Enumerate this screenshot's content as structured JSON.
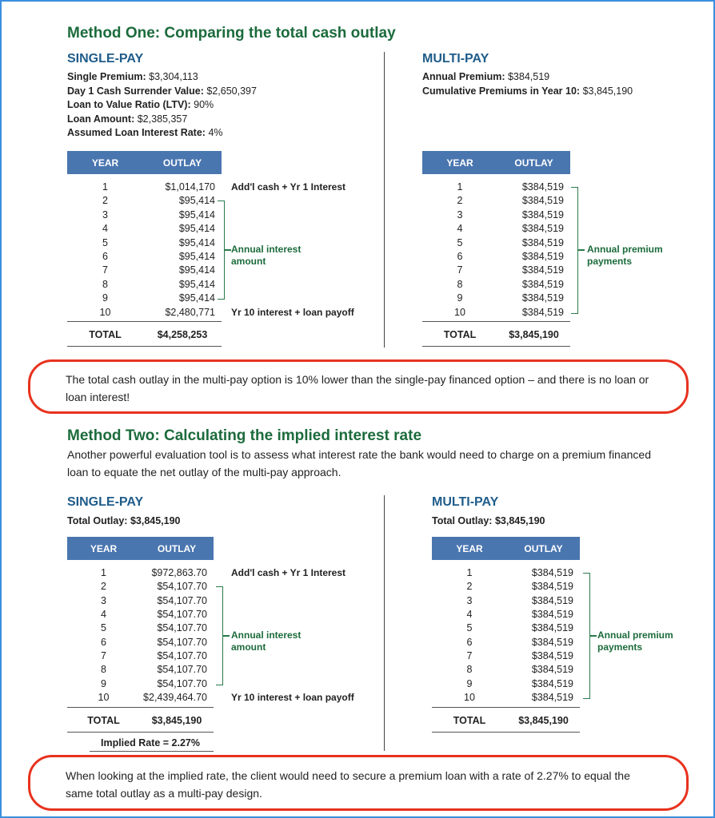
{
  "method_one": {
    "title": "Method One: Comparing the total cash outlay",
    "single_pay": {
      "heading": "SINGLE-PAY",
      "facts": [
        {
          "label": "Single Premium:",
          "value": "$3,304,113"
        },
        {
          "label": "Day 1 Cash Surrender Value:",
          "value": "$2,650,397"
        },
        {
          "label": "Loan to Value Ratio (LTV):",
          "value": "90%"
        },
        {
          "label": "Loan Amount:",
          "value": "$2,385,357"
        },
        {
          "label": "Assumed Loan Interest Rate:",
          "value": "4%"
        }
      ],
      "table": {
        "headers": [
          "YEAR",
          "OUTLAY"
        ],
        "rows": [
          [
            1,
            "$1,014,170"
          ],
          [
            2,
            "$95,414"
          ],
          [
            3,
            "$95,414"
          ],
          [
            4,
            "$95,414"
          ],
          [
            5,
            "$95,414"
          ],
          [
            6,
            "$95,414"
          ],
          [
            7,
            "$95,414"
          ],
          [
            8,
            "$95,414"
          ],
          [
            9,
            "$95,414"
          ],
          [
            10,
            "$2,480,771"
          ]
        ],
        "total": [
          "TOTAL",
          "$4,258,253"
        ]
      },
      "notes": {
        "first": "Add'l cash + Yr 1 Interest",
        "bracket": "Annual interest amount",
        "last": "Yr 10 interest + loan payoff"
      }
    },
    "multi_pay": {
      "heading": "MULTI-PAY",
      "facts": [
        {
          "label": "Annual Premium:",
          "value": "$384,519"
        },
        {
          "label": "Cumulative Premiums in Year 10:",
          "value": "$3,845,190"
        }
      ],
      "table": {
        "headers": [
          "YEAR",
          "OUTLAY"
        ],
        "rows": [
          [
            1,
            "$384,519"
          ],
          [
            2,
            "$384,519"
          ],
          [
            3,
            "$384,519"
          ],
          [
            4,
            "$384,519"
          ],
          [
            5,
            "$384,519"
          ],
          [
            6,
            "$384,519"
          ],
          [
            7,
            "$384,519"
          ],
          [
            8,
            "$384,519"
          ],
          [
            9,
            "$384,519"
          ],
          [
            10,
            "$384,519"
          ]
        ],
        "total": [
          "TOTAL",
          "$3,845,190"
        ]
      },
      "notes": {
        "bracket": "Annual premium payments"
      }
    }
  },
  "callout_one": "The total cash outlay in the multi-pay option is 10% lower than the single-pay financed option – and there is no loan or loan interest!",
  "method_two": {
    "title": "Method Two: Calculating the implied interest rate",
    "intro": "Another powerful evaluation tool is to assess what interest rate the bank would need to charge on a premium financed loan to equate the net outlay of the multi-pay approach.",
    "single_pay": {
      "heading": "SINGLE-PAY",
      "facts": [
        {
          "label": "Total Outlay:",
          "value": "$3,845,190"
        }
      ],
      "table": {
        "headers": [
          "YEAR",
          "OUTLAY"
        ],
        "rows": [
          [
            1,
            "$972,863.70"
          ],
          [
            2,
            "$54,107.70"
          ],
          [
            3,
            "$54,107.70"
          ],
          [
            4,
            "$54,107.70"
          ],
          [
            5,
            "$54,107.70"
          ],
          [
            6,
            "$54,107.70"
          ],
          [
            7,
            "$54,107.70"
          ],
          [
            8,
            "$54,107.70"
          ],
          [
            9,
            "$54,107.70"
          ],
          [
            10,
            "$2,439,464.70"
          ]
        ],
        "total": [
          "TOTAL",
          "$3,845,190"
        ]
      },
      "notes": {
        "first": "Add'l cash + Yr 1 Interest",
        "bracket": "Annual interest amount",
        "last": "Yr 10 interest + loan payoff"
      },
      "implied_rate": "Implied Rate = 2.27%"
    },
    "multi_pay": {
      "heading": "MULTI-PAY",
      "facts": [
        {
          "label": "Total Outlay:",
          "value": "$3,845,190"
        }
      ],
      "table": {
        "headers": [
          "YEAR",
          "OUTLAY"
        ],
        "rows": [
          [
            1,
            "$384,519"
          ],
          [
            2,
            "$384,519"
          ],
          [
            3,
            "$384,519"
          ],
          [
            4,
            "$384,519"
          ],
          [
            5,
            "$384,519"
          ],
          [
            6,
            "$384,519"
          ],
          [
            7,
            "$384,519"
          ],
          [
            8,
            "$384,519"
          ],
          [
            9,
            "$384,519"
          ],
          [
            10,
            "$384,519"
          ]
        ],
        "total": [
          "TOTAL",
          "$3,845,190"
        ]
      },
      "notes": {
        "bracket": "Annual premium payments"
      }
    }
  },
  "callout_two": "When looking at the implied rate, the client would need to secure a premium loan with a rate of 2.27% to equal the same total outlay as a multi-pay design."
}
